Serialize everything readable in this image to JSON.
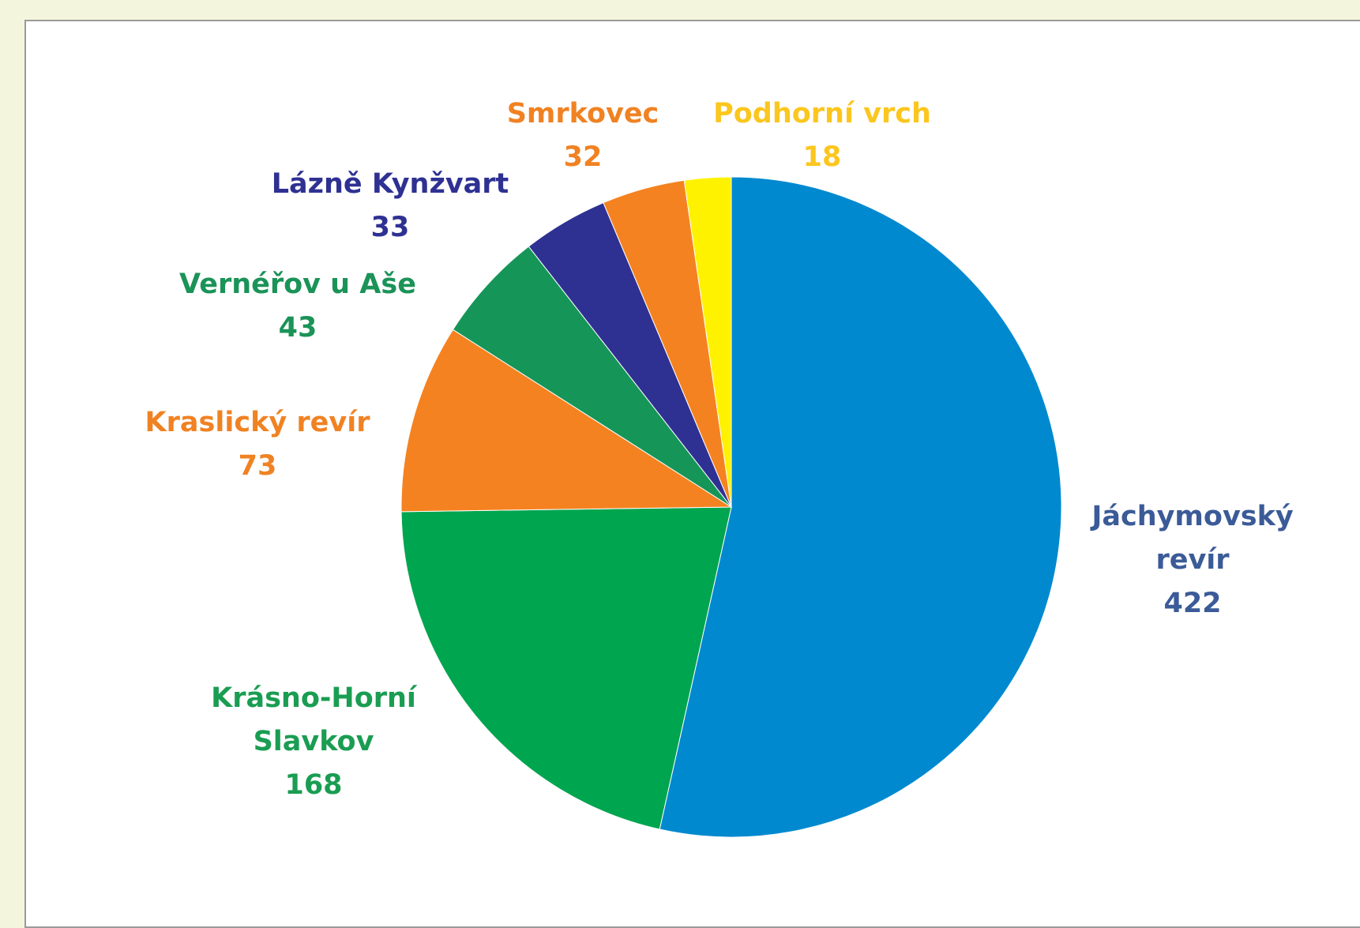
{
  "chart_data": {
    "type": "pie",
    "categories": [
      "Jáchymovský revír",
      "Krásno-Horní Slavkov",
      "Kraslický revír",
      "Vernéřov u Aše",
      "Lázně Kynžvart",
      "Smrkovec",
      "Podhorní vrch"
    ],
    "values": [
      422,
      168,
      73,
      43,
      33,
      32,
      18
    ],
    "colors": [
      "#0089cf",
      "#00a54f",
      "#f58220",
      "#169558",
      "#2e3192",
      "#f58220",
      "#fff200"
    ],
    "label_colors": [
      "#3b5b98",
      "#1a9d52",
      "#f08223",
      "#1b9358",
      "#2e3192",
      "#f08223",
      "#fbc61e"
    ]
  }
}
